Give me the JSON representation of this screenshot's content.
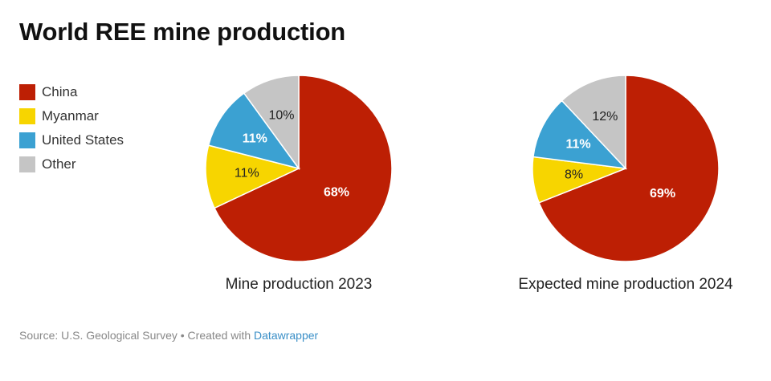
{
  "title": "World REE mine production",
  "legend": [
    {
      "label": "China",
      "color": "#bd1f04"
    },
    {
      "label": "Myanmar",
      "color": "#f7d500"
    },
    {
      "label": "United States",
      "color": "#3ba1d2"
    },
    {
      "label": "Other",
      "color": "#c5c5c5"
    }
  ],
  "chart_data": [
    {
      "type": "pie",
      "title": "Mine production 2023",
      "slices": [
        {
          "label": "China",
          "value": 68,
          "display": "68%",
          "color": "#bd1f04"
        },
        {
          "label": "Myanmar",
          "value": 11,
          "display": "11%",
          "color": "#f7d500"
        },
        {
          "label": "United States",
          "value": 11,
          "display": "11%",
          "color": "#3ba1d2"
        },
        {
          "label": "Other",
          "value": 10,
          "display": "10%",
          "color": "#c5c5c5"
        }
      ]
    },
    {
      "type": "pie",
      "title": "Expected mine production 2024",
      "slices": [
        {
          "label": "China",
          "value": 69,
          "display": "69%",
          "color": "#bd1f04"
        },
        {
          "label": "Myanmar",
          "value": 8,
          "display": "8%",
          "color": "#f7d500"
        },
        {
          "label": "United States",
          "value": 11,
          "display": "11%",
          "color": "#3ba1d2"
        },
        {
          "label": "Other",
          "value": 12,
          "display": "12%",
          "color": "#c5c5c5"
        }
      ]
    }
  ],
  "footer": {
    "source": "Source: U.S. Geological Survey • Created with ",
    "link": "Datawrapper"
  }
}
